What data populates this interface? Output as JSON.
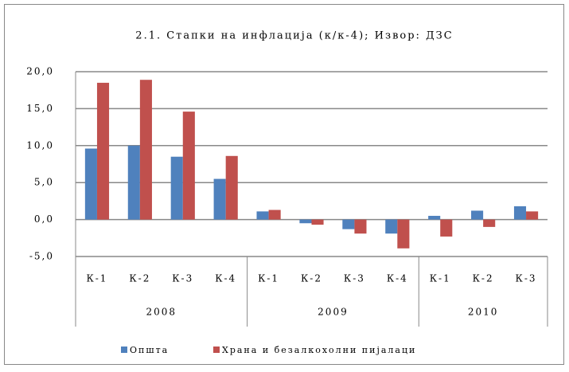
{
  "chart_data": {
    "type": "bar",
    "title": "2.1. Стапки на инфлација (к/к-4); Извор: ДЗС",
    "groups": [
      {
        "name": "2008",
        "categories": [
          "К-1",
          "К-2",
          "К-3",
          "К-4"
        ]
      },
      {
        "name": "2009",
        "categories": [
          "К-1",
          "К-2",
          "К-3",
          "К-4"
        ]
      },
      {
        "name": "2010",
        "categories": [
          "К-1",
          "К-2",
          "К-3"
        ]
      }
    ],
    "series": [
      {
        "name": "Општа",
        "color": "#4f81bd",
        "values": [
          9.6,
          10.0,
          8.5,
          5.5,
          1.1,
          -0.5,
          -1.3,
          -1.9,
          0.5,
          1.2,
          1.8
        ]
      },
      {
        "name": "Храна и безалкохолни пијалаци",
        "color": "#c0504d",
        "values": [
          18.5,
          18.9,
          14.6,
          8.6,
          1.3,
          -0.7,
          -1.9,
          -3.9,
          -2.3,
          -1.0,
          1.1
        ]
      }
    ],
    "ylim": [
      -5,
      20
    ],
    "yticks": [
      {
        "value": -5,
        "label": "-5,0"
      },
      {
        "value": 0,
        "label": "0,0"
      },
      {
        "value": 5,
        "label": "5,0"
      },
      {
        "value": 10,
        "label": "10,0"
      },
      {
        "value": 15,
        "label": "15,0"
      },
      {
        "value": 20,
        "label": "20,0"
      }
    ],
    "grid": true,
    "legend": "bottom"
  }
}
